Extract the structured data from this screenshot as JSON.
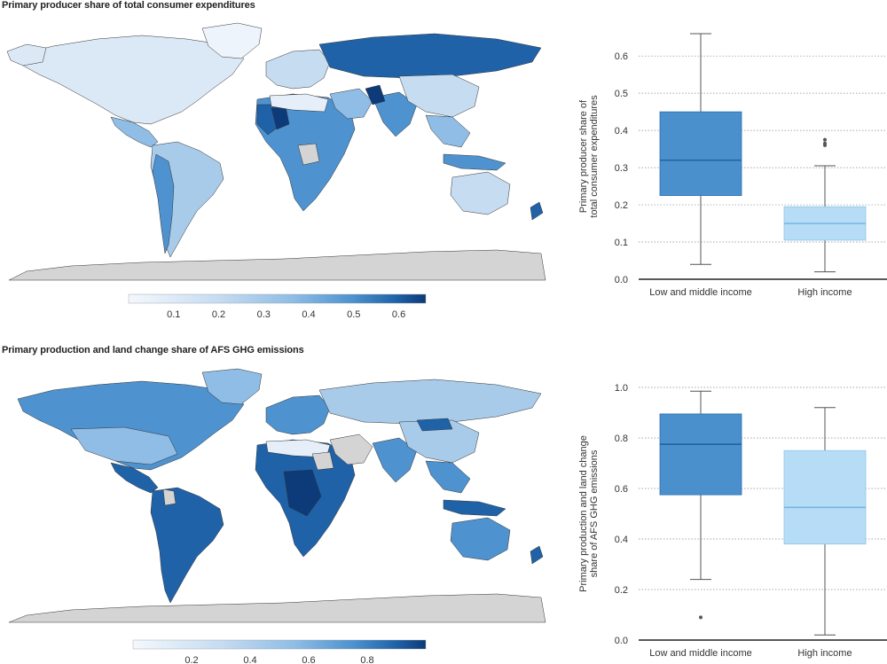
{
  "panels": [
    {
      "title": "Primary producer share of total consumer expenditures"
    },
    {
      "title": "Primary production and land change share of AFS GHG emissions"
    }
  ],
  "colors": {
    "scale": [
      "#f4f8fd",
      "#c6dcf1",
      "#8fbde6",
      "#4e92cf",
      "#1f62a8",
      "#0d3a78"
    ],
    "no_data": "#d4d4d4",
    "low_middle_box": "#4a90cd",
    "high_box": "#b7ddf6",
    "median_low": "#1e5f9e",
    "median_high": "#6fb3df",
    "whisker": "#555555",
    "grid": "#8a8a8a"
  },
  "chart_data": [
    {
      "type": "box",
      "ylabel": "Primary producer share of total consumer expenditures",
      "ylim": [
        0,
        0.66
      ],
      "yticks": [
        "0.0",
        "0.1",
        "0.2",
        "0.3",
        "0.4",
        "0.5",
        "0.6"
      ],
      "grid": "horizontal dotted",
      "categories": [
        "Low and middle income",
        "High income"
      ],
      "boxes": [
        {
          "min": 0.04,
          "q1": 0.225,
          "median": 0.32,
          "q3": 0.45,
          "max": 0.66,
          "outliers": []
        },
        {
          "min": 0.02,
          "q1": 0.105,
          "median": 0.15,
          "q3": 0.195,
          "max": 0.305,
          "outliers": [
            0.36,
            0.365,
            0.375
          ]
        }
      ],
      "map_colorbar": {
        "min": 0.0,
        "max": 0.66,
        "ticks": [
          "0.1",
          "0.2",
          "0.3",
          "0.4",
          "0.5",
          "0.6"
        ]
      }
    },
    {
      "type": "box",
      "ylabel": "Primary production and land change share of AFS GHG emissions",
      "ylim": [
        0,
        1.0
      ],
      "yticks": [
        "0.0",
        "0.2",
        "0.4",
        "0.6",
        "0.8",
        "1.0"
      ],
      "grid": "horizontal dotted",
      "categories": [
        "Low and middle income",
        "High income"
      ],
      "boxes": [
        {
          "min": 0.24,
          "q1": 0.575,
          "median": 0.775,
          "q3": 0.895,
          "max": 0.985,
          "outliers": [
            0.09
          ]
        },
        {
          "min": 0.02,
          "q1": 0.38,
          "median": 0.525,
          "q3": 0.75,
          "max": 0.92,
          "outliers": []
        }
      ],
      "map_colorbar": {
        "min": 0.0,
        "max": 1.0,
        "ticks": [
          "0.2",
          "0.4",
          "0.6",
          "0.8"
        ]
      }
    }
  ]
}
